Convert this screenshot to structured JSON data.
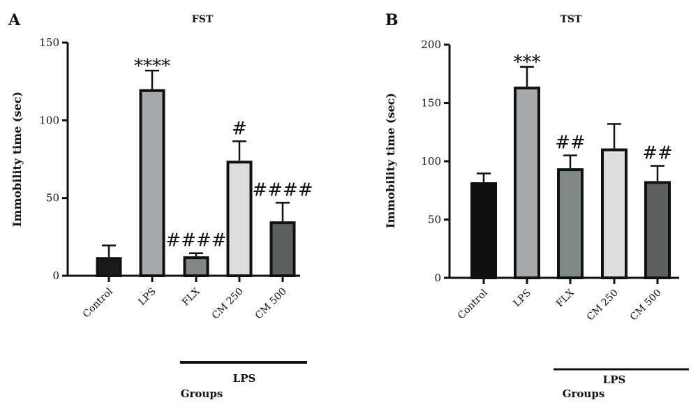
{
  "chart_data": [
    {
      "type": "bar",
      "panel": "A",
      "title": "FST",
      "ylabel": "Immobility time (sec)",
      "xlabel": "Groups",
      "group_bracket_label": "LPS",
      "ylim": [
        0,
        150
      ],
      "yticks": [
        "0",
        "50",
        "100",
        "150"
      ],
      "categories": [
        "Control",
        "LPS",
        "FLX",
        "CM 250",
        "CM 500"
      ],
      "values": [
        12,
        120,
        12.5,
        74,
        35
      ],
      "errors": [
        7.5,
        12,
        2,
        12.5,
        12
      ],
      "annotations": [
        "",
        "****",
        "####",
        "#",
        "####"
      ],
      "colors": [
        "#1a1a1a",
        "#a3a9ad",
        "#7f8885",
        "#dcdfdd",
        "#5a6160"
      ]
    },
    {
      "type": "bar",
      "panel": "B",
      "title": "TST",
      "ylabel": "Immobility time (sec)",
      "xlabel": "Groups",
      "group_bracket_label": "LPS",
      "ylim": [
        0,
        200
      ],
      "yticks": [
        "0",
        "50",
        "100",
        "150",
        "200"
      ],
      "categories": [
        "Control",
        "LPS",
        "FLX",
        "CM 250",
        "CM 500"
      ],
      "values": [
        82,
        164,
        94,
        111,
        83
      ],
      "errors": [
        7.5,
        17,
        11,
        21,
        13
      ],
      "annotations": [
        "",
        "***",
        "##",
        "",
        "##"
      ],
      "colors": [
        "#111111",
        "#a3a9ad",
        "#7f8885",
        "#dcdfdd",
        "#5a6160"
      ]
    }
  ]
}
